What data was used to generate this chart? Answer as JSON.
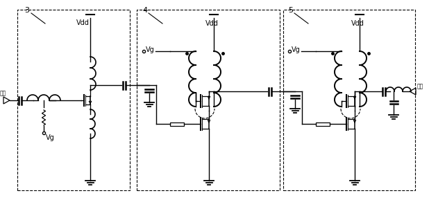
{
  "background_color": "#ffffff",
  "line_color": "#000000",
  "label1": "3",
  "label2": "4",
  "label3": "5",
  "text_input": "输入",
  "text_output": "输出",
  "text_vdd": "Vdd",
  "text_vg": "Vg"
}
